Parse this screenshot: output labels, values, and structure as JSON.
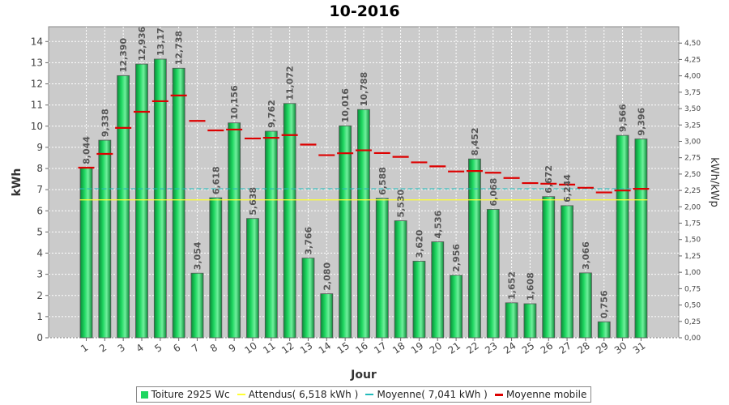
{
  "chart_data": {
    "type": "bar",
    "title": "10-2016",
    "xlabel": "Jour",
    "ylabel": "kWh",
    "y2label": "kWh/kWp",
    "ylim": [
      0,
      14.7
    ],
    "y2lim": [
      0,
      4.75
    ],
    "yticks": [
      "0",
      "1",
      "2",
      "3",
      "4",
      "5",
      "6",
      "7",
      "8",
      "9",
      "10",
      "11",
      "12",
      "13",
      "14"
    ],
    "y2ticks": [
      "0,00",
      "0,25",
      "0,50",
      "0,75",
      "1,00",
      "1,25",
      "1,50",
      "1,75",
      "2,00",
      "2,25",
      "2,50",
      "2,75",
      "3,00",
      "3,25",
      "3,50",
      "3,75",
      "4,00",
      "4,25",
      "4,50"
    ],
    "categories": [
      "1",
      "2",
      "3",
      "4",
      "5",
      "6",
      "7",
      "8",
      "9",
      "10",
      "11",
      "12",
      "13",
      "14",
      "15",
      "16",
      "17",
      "18",
      "19",
      "20",
      "21",
      "22",
      "23",
      "24",
      "25",
      "26",
      "27",
      "28",
      "29",
      "30",
      "31"
    ],
    "series": [
      {
        "name": "Toiture 2925 Wc",
        "values": [
          8.044,
          9.338,
          12.39,
          12.936,
          13.17,
          12.738,
          3.054,
          6.618,
          10.156,
          5.638,
          9.762,
          11.072,
          3.766,
          2.08,
          10.016,
          10.788,
          6.588,
          5.53,
          3.62,
          4.536,
          2.956,
          8.452,
          6.068,
          1.652,
          1.608,
          6.672,
          6.244,
          3.066,
          0.756,
          9.566,
          9.396
        ],
        "labels": [
          "8,044",
          "9,338",
          "12,390",
          "12,936",
          "13,17",
          "12,738",
          "3,054",
          "6,618",
          "10,156",
          "5,638",
          "9,762",
          "11,072",
          "3,766",
          "2,080",
          "10,016",
          "10,788",
          "6,588",
          "5,530",
          "3,620",
          "4,536",
          "2,956",
          "8,452",
          "6,068",
          "1,652",
          "1,608",
          "6,672",
          "6,244",
          "3,066",
          "0,756",
          "9,566",
          "9,396"
        ]
      },
      {
        "name": "Attendus( 6,518 kWh )",
        "value": 6.518
      },
      {
        "name": "Moyenne( 7,041 kWh )",
        "value": 7.041
      },
      {
        "name": "Moyenne mobile",
        "values": [
          8.04,
          8.69,
          9.92,
          10.68,
          11.18,
          11.45,
          10.25,
          9.8,
          9.84,
          9.42,
          9.45,
          9.58,
          9.13,
          8.63,
          8.72,
          8.86,
          8.73,
          8.55,
          8.29,
          8.1,
          7.86,
          7.88,
          7.8,
          7.55,
          7.31,
          7.28,
          7.24,
          7.09,
          6.87,
          6.96,
          7.04
        ]
      }
    ],
    "colors": {
      "bar": "#1ed660",
      "bar_dark": "#0a8a38",
      "bar_light": "#6ff09c",
      "expected": "#ffff33",
      "average": "#22bbbb",
      "moving": "#dd0000",
      "plot_bg": "#cbcbcb"
    },
    "grid": true
  },
  "legend": {
    "toiture": "Toiture 2925 Wc",
    "attendus": "Attendus( 6,518 kWh )",
    "moyenne": "Moyenne( 7,041 kWh )",
    "mobile": "Moyenne mobile"
  }
}
